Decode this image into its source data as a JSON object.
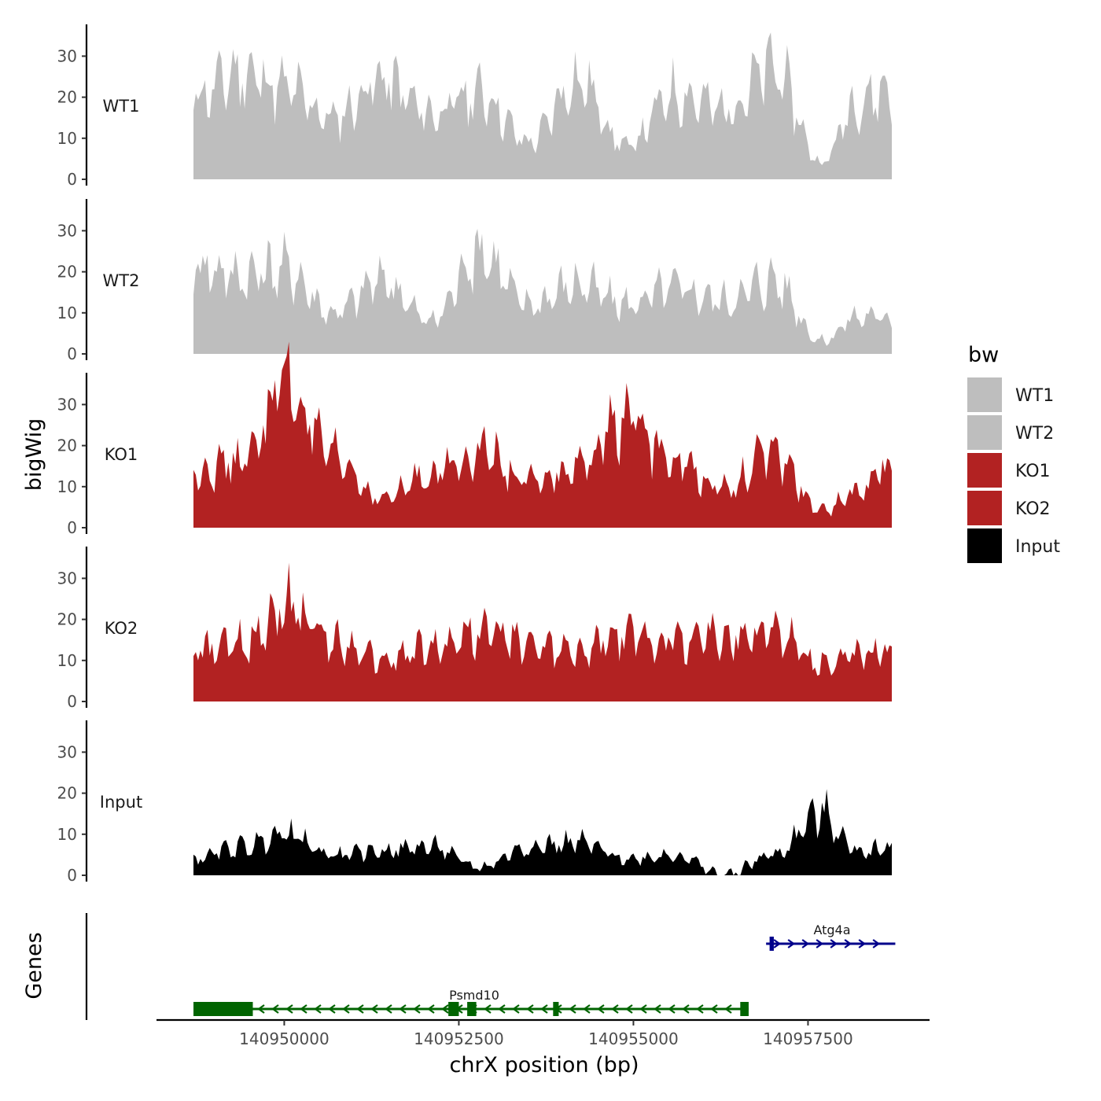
{
  "chart_data": {
    "type": "area",
    "title": "",
    "xlabel": "chrX position (bp)",
    "ylabel": "bigWig",
    "genes_axis_label": "Genes",
    "x_range": [
      140948700,
      140958700
    ],
    "ylim": [
      0,
      37
    ],
    "y_ticks": [
      0,
      10,
      20,
      30
    ],
    "x_ticks": [
      {
        "value": 140950000,
        "label": "140950000"
      },
      {
        "value": 140952500,
        "label": "140952500"
      },
      {
        "value": 140955000,
        "label": "140955000"
      },
      {
        "value": 140957500,
        "label": "140957500"
      }
    ],
    "legend": {
      "title": "bw",
      "items": [
        {
          "label": "WT1",
          "color": "#bebebe"
        },
        {
          "label": "WT2",
          "color": "#bebebe"
        },
        {
          "label": "KO1",
          "color": "#b22222"
        },
        {
          "label": "KO2",
          "color": "#b22222"
        },
        {
          "label": "Input",
          "color": "#000000"
        }
      ]
    },
    "series": [
      {
        "name": "WT1",
        "color": "#bebebe",
        "x": [
          140948700,
          140949400,
          140950000,
          140950700,
          140951400,
          140952100,
          140952800,
          140953500,
          140954200,
          140954900,
          140955600,
          140956300,
          140957000,
          140957700,
          140958200,
          140958700
        ],
        "values": [
          20,
          26,
          22,
          15,
          24,
          16,
          21,
          9,
          24,
          8,
          21,
          17,
          27,
          4,
          19,
          22
        ]
      },
      {
        "name": "WT2",
        "color": "#bebebe",
        "x": [
          140948700,
          140949400,
          140950000,
          140950700,
          140951400,
          140952100,
          140952800,
          140953500,
          140954200,
          140954900,
          140955600,
          140956300,
          140957000,
          140957700,
          140958200,
          140958700
        ],
        "values": [
          22,
          19,
          21,
          10,
          18,
          8,
          25,
          12,
          17,
          12,
          16,
          13,
          18,
          3,
          9,
          9
        ]
      },
      {
        "name": "KO1",
        "color": "#b22222",
        "x": [
          140948700,
          140949400,
          140950000,
          140950700,
          140951400,
          140952100,
          140952800,
          140953500,
          140954200,
          140954900,
          140955600,
          140956300,
          140957000,
          140957700,
          140958200,
          140958700
        ],
        "values": [
          14,
          16,
          35,
          17,
          7,
          13,
          19,
          11,
          14,
          27,
          16,
          10,
          18,
          4,
          9,
          16
        ]
      },
      {
        "name": "KO2",
        "color": "#b22222",
        "x": [
          140948700,
          140949400,
          140950000,
          140950700,
          140951400,
          140952100,
          140952800,
          140953500,
          140954200,
          140954900,
          140955600,
          140956300,
          140957000,
          140957700,
          140958200,
          140958700
        ],
        "values": [
          12,
          14,
          24,
          15,
          10,
          13,
          17,
          14,
          12,
          16,
          15,
          16,
          17,
          9,
          11,
          13
        ]
      },
      {
        "name": "Input",
        "color": "#000000",
        "x": [
          140948700,
          140949400,
          140950000,
          140950700,
          140951400,
          140952100,
          140952800,
          140953500,
          140954200,
          140954900,
          140955600,
          140956300,
          140957000,
          140957700,
          140958200,
          140958700
        ],
        "values": [
          4,
          7,
          10,
          5,
          6,
          7,
          2,
          7,
          8,
          4,
          5,
          0,
          5,
          15,
          6,
          7
        ]
      }
    ],
    "genes": [
      {
        "name": "Psmd10",
        "start": 140948700,
        "end": 140956650,
        "strand": "-",
        "color": "#006400",
        "exons": [
          [
            140948700,
            140949550
          ],
          [
            140952350,
            140952500
          ],
          [
            140952620,
            140952750
          ],
          [
            140953850,
            140953930
          ],
          [
            140956530,
            140956650
          ]
        ]
      },
      {
        "name": "Atg4a",
        "start": 140956900,
        "end": 140958750,
        "strand": "+",
        "color": "#00008b",
        "exons": [
          [
            140956950,
            140957010
          ]
        ]
      }
    ]
  }
}
